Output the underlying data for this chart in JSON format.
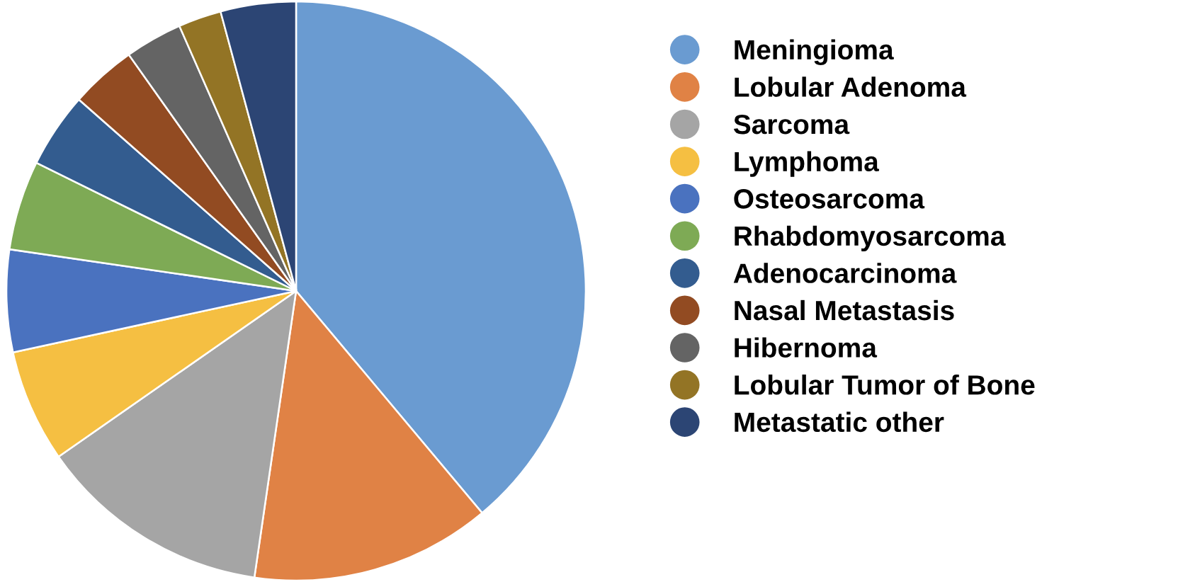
{
  "chart_data": {
    "type": "pie",
    "categories": [
      "Meningioma",
      "Lobular Adenoma",
      "Sarcoma",
      "Lymphoma",
      "Osteosarcoma",
      "Rhabdomyosarcoma",
      "Adenocarcinoma",
      "Nasal Metastasis",
      "Hibernoma",
      "Lobular Tumor of Bone",
      "Metastatic other"
    ],
    "values": [
      38.9,
      13.4,
      13.0,
      6.3,
      5.7,
      5.0,
      4.2,
      3.7,
      3.2,
      2.4,
      4.2
    ],
    "colors": [
      "#6a9bd1",
      "#e08245",
      "#a5a5a5",
      "#f5bf42",
      "#4a72bf",
      "#7eaa55",
      "#335c8f",
      "#924b22",
      "#646464",
      "#937425",
      "#2c4574"
    ],
    "legend": "right"
  }
}
